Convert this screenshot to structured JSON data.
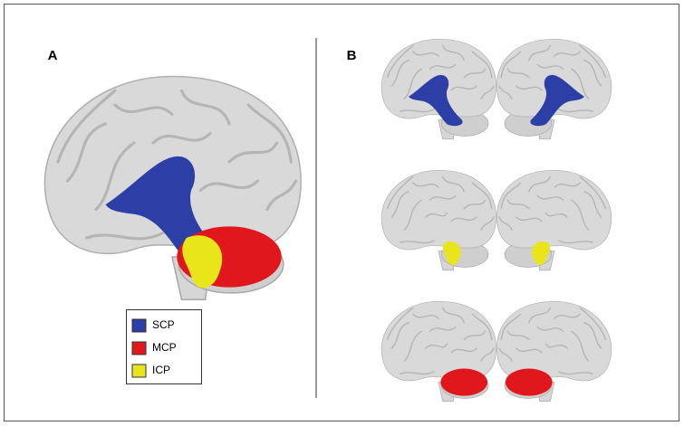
{
  "panels": [
    {
      "label": "A"
    },
    {
      "label": "B"
    }
  ],
  "legend": {
    "items": [
      {
        "label": "SCP",
        "color": "#2c3fa6"
      },
      {
        "label": "MCP",
        "color": "#e0171c"
      },
      {
        "label": "ICP",
        "color": "#e8e61a"
      }
    ]
  }
}
